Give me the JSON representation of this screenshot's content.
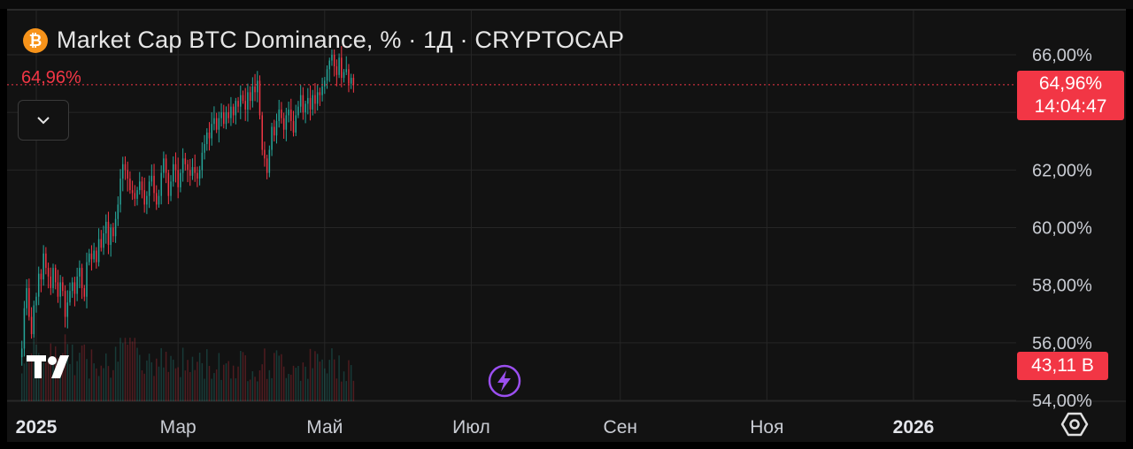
{
  "legend": {
    "icon": "bitcoin-icon",
    "icon_glyph": "₿",
    "title": "Market Cap BTC Dominance, % · 1Д · CRYPTOCAP"
  },
  "last_value_left": "64,96%",
  "price_tag": {
    "value": "64,96%",
    "countdown": "14:04:47"
  },
  "volume_tag": "43,11 B",
  "colors": {
    "up": "#26a69a",
    "down": "#f23645",
    "grid": "#262626",
    "accent": "#f23645"
  },
  "chart_data": {
    "type": "candlestick",
    "yaxis": {
      "ticks": [
        {
          "value": 66,
          "label": "66,00%"
        },
        {
          "value": 62,
          "label": "62,00%"
        },
        {
          "value": 60,
          "label": "60,00%"
        },
        {
          "value": 58,
          "label": "58,00%"
        },
        {
          "value": 56,
          "label": "56,00%"
        },
        {
          "value": 54,
          "label": "54,00%"
        }
      ],
      "range": [
        54,
        66.4
      ]
    },
    "xaxis": {
      "ticks": [
        {
          "label": "2025",
          "bold": true,
          "index": 6
        },
        {
          "label": "Мар",
          "bold": false,
          "index": 65
        },
        {
          "label": "Май",
          "bold": false,
          "index": 126
        },
        {
          "label": "Июл",
          "bold": false,
          "index": 187
        },
        {
          "label": "Сен",
          "bold": false,
          "index": 249
        },
        {
          "label": "Ноя",
          "bold": false,
          "index": 310
        },
        {
          "label": "2026",
          "bold": true,
          "index": 371
        }
      ],
      "visible_days": 420
    },
    "last_value": 64.96,
    "close": [
      55.8,
      57.2,
      57.9,
      56.9,
      56.3,
      57.3,
      57.6,
      58.4,
      58.2,
      59.1,
      58.6,
      58.3,
      57.9,
      58.6,
      58.1,
      57.6,
      58.1,
      57.8,
      56.9,
      57.4,
      57.8,
      58.1,
      57.7,
      58.3,
      58.6,
      57.9,
      57.6,
      58.8,
      59.1,
      58.9,
      59.2,
      58.8,
      59.6,
      59.3,
      59.8,
      60.2,
      59.4,
      60.0,
      59.7,
      60.3,
      60.8,
      61.7,
      62.2,
      62.0,
      61.7,
      61.3,
      61.2,
      61.0,
      61.3,
      61.6,
      61.3,
      60.8,
      61.1,
      61.6,
      61.8,
      61.2,
      60.8,
      61.1,
      61.9,
      62.4,
      61.9,
      61.1,
      61.6,
      62.2,
      62.0,
      61.4,
      61.9,
      62.4,
      62.2,
      62.0,
      61.8,
      62.1,
      61.9,
      61.7,
      62.0,
      62.6,
      62.9,
      63.3,
      63.1,
      63.6,
      63.8,
      63.4,
      63.8,
      64.0,
      63.6,
      64.0,
      63.8,
      64.2,
      63.9,
      64.4,
      64.2,
      64.6,
      64.4,
      64.1,
      64.7,
      64.4,
      64.9,
      64.7,
      65.1,
      63.9,
      62.7,
      62.4,
      61.9,
      62.7,
      63.5,
      63.2,
      63.7,
      64.1,
      63.8,
      63.4,
      63.9,
      64.1,
      63.7,
      63.3,
      63.9,
      64.2,
      64.6,
      64.0,
      64.3,
      64.5,
      64.1,
      64.6,
      64.3,
      64.7,
      64.6,
      64.9,
      65.1,
      65.5,
      65.8,
      66.0,
      65.6,
      65.3,
      65.9,
      65.2,
      65.4,
      65.5,
      65.0,
      65.2,
      64.96
    ]
  }
}
